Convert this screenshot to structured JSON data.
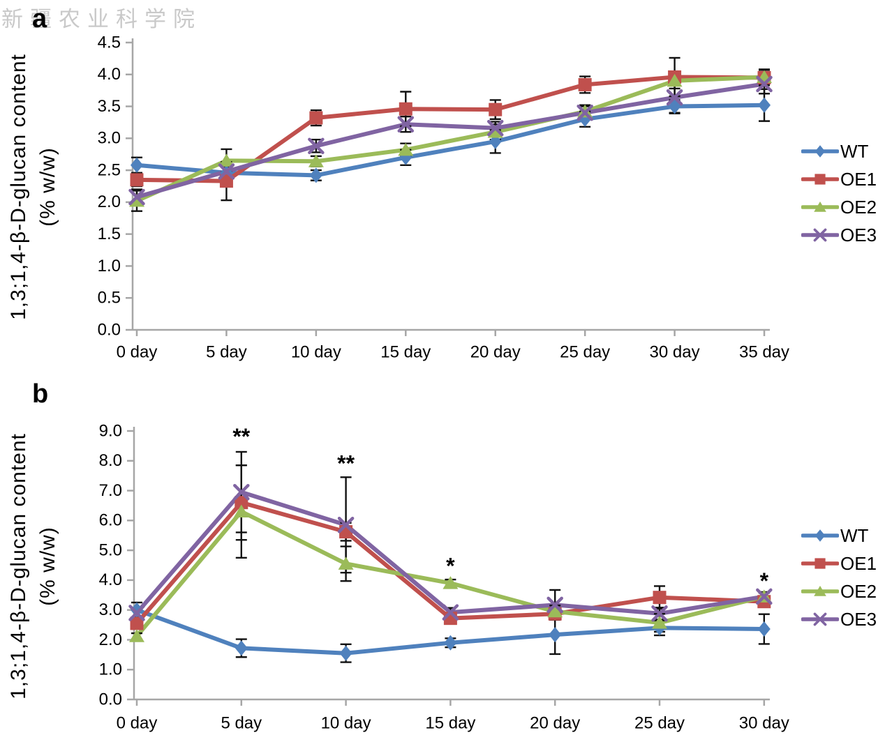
{
  "figure": {
    "watermark": "新疆农业科学院",
    "panels": [
      {
        "label": "a",
        "ylabel_line1": "1,3;1,4-β-D-glucan content",
        "ylabel_line2": "(% w/w)"
      },
      {
        "label": "b",
        "ylabel_line1": "1,3;1,4-β-D-glucan content",
        "ylabel_line2": "(% w/w)"
      }
    ],
    "colors": {
      "wt": "#4F81BD",
      "oe1": "#C0504D",
      "oe2": "#9BBB59",
      "oe3": "#8064A2",
      "axis": "#A6A6A6",
      "error_bar": "#111111"
    }
  },
  "chart_data": [
    {
      "type": "line",
      "title": "",
      "xlabel": "",
      "ylabel": "1,3;1,4-β-D-glucan content (% w/w)",
      "ylim": [
        0,
        4.5
      ],
      "ytick_step": 0.5,
      "grid": false,
      "legend_position": "right",
      "categories": [
        "0 day",
        "5 day",
        "10 day",
        "15 day",
        "20 day",
        "25 day",
        "30 day",
        "35 day"
      ],
      "series": [
        {
          "name": "WT",
          "color": "#4F81BD",
          "marker": "diamond",
          "values": [
            2.58,
            2.46,
            2.42,
            2.7,
            2.95,
            3.3,
            3.5,
            3.52
          ],
          "errors": [
            0.12,
            0.1,
            0.08,
            0.12,
            0.18,
            0.12,
            0.1,
            0.25
          ]
        },
        {
          "name": "OE1",
          "color": "#C0504D",
          "marker": "square",
          "values": [
            2.35,
            2.33,
            3.32,
            3.46,
            3.45,
            3.84,
            3.96,
            3.95
          ],
          "errors": [
            0.1,
            0.3,
            0.12,
            0.27,
            0.15,
            0.13,
            0.3,
            0.12
          ]
        },
        {
          "name": "OE2",
          "color": "#9BBB59",
          "marker": "triangle",
          "values": [
            2.02,
            2.65,
            2.64,
            2.82,
            3.1,
            3.42,
            3.9,
            3.96
          ],
          "errors": [
            0.16,
            0.18,
            0.08,
            0.1,
            0.12,
            0.1,
            0.12,
            0.12
          ]
        },
        {
          "name": "OE3",
          "color": "#8064A2",
          "marker": "x",
          "values": [
            2.08,
            2.48,
            2.88,
            3.22,
            3.16,
            3.4,
            3.64,
            3.85
          ],
          "errors": [
            0.12,
            0.1,
            0.1,
            0.12,
            0.1,
            0.1,
            0.25,
            0.15
          ]
        }
      ],
      "annotations": []
    },
    {
      "type": "line",
      "title": "",
      "xlabel": "",
      "ylabel": "1,3;1,4-β-D-glucan content (% w/w)",
      "ylim": [
        0,
        9.0
      ],
      "ytick_step": 1.0,
      "grid": false,
      "legend_position": "right",
      "categories": [
        "0 day",
        "5 day",
        "10 day",
        "15 day",
        "20 day",
        "25 day",
        "30 day"
      ],
      "series": [
        {
          "name": "WT",
          "color": "#4F81BD",
          "marker": "diamond",
          "values": [
            3.0,
            1.72,
            1.55,
            1.9,
            2.17,
            2.4,
            2.36
          ],
          "errors": [
            0.25,
            0.3,
            0.3,
            0.15,
            0.65,
            0.25,
            0.5
          ]
        },
        {
          "name": "OE1",
          "color": "#C0504D",
          "marker": "square",
          "values": [
            2.55,
            6.6,
            5.62,
            2.72,
            2.87,
            3.42,
            3.28
          ],
          "errors": [
            0.15,
            1.25,
            0.3,
            0.1,
            0.2,
            0.38,
            0.15
          ]
        },
        {
          "name": "OE2",
          "color": "#9BBB59",
          "marker": "triangle",
          "values": [
            2.12,
            6.3,
            4.55,
            3.9,
            2.95,
            2.57,
            3.45
          ],
          "errors": [
            0.1,
            1.55,
            0.58,
            0.12,
            0.2,
            0.3,
            0.12
          ]
        },
        {
          "name": "OE3",
          "color": "#8064A2",
          "marker": "x",
          "values": [
            2.9,
            6.95,
            5.85,
            2.92,
            3.17,
            2.88,
            3.45
          ],
          "errors": [
            0.15,
            1.35,
            1.6,
            0.15,
            0.5,
            0.2,
            0.15
          ]
        }
      ],
      "annotations": [
        {
          "category": "5 day",
          "text": "**",
          "value": 8.75
        },
        {
          "category": "10 day",
          "text": "**",
          "value": 7.85
        },
        {
          "category": "15 day",
          "text": "*",
          "value": 4.42
        },
        {
          "category": "30 day",
          "text": "*",
          "value": 3.92
        }
      ]
    }
  ]
}
